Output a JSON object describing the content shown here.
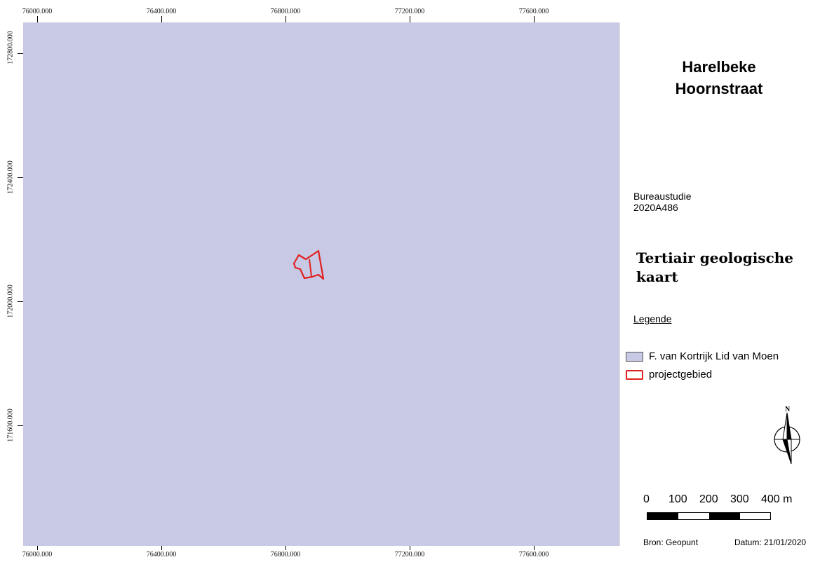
{
  "map": {
    "background_color": "#c8c9e4",
    "project_outline_color": "#e02020",
    "x_labels": [
      "76000.000",
      "76400.000",
      "76800.000",
      "77200.000",
      "77600.000"
    ],
    "y_labels": [
      "172800.000",
      "172400.000",
      "172000.000",
      "171600.000"
    ]
  },
  "panel": {
    "title_line1": "Harelbeke",
    "title_line2": "Hoornstraat",
    "study_line1": "Bureaustudie",
    "study_line2": "2020A486",
    "map_title": "Tertiair geologische kaart",
    "legend_heading": "Legende",
    "legend": [
      {
        "label": "F. van Kortrijk Lid van Moen",
        "symbol": "filled-swatch",
        "color": "#c8c9e4"
      },
      {
        "label": "projectgebied",
        "symbol": "outline-swatch",
        "color": "#e02020"
      }
    ],
    "north_label": "N",
    "scale_labels": [
      "0",
      "100",
      "200",
      "300",
      "400 m"
    ],
    "source": "Bron: Geopunt",
    "date": "Datum: 21/01/2020"
  }
}
